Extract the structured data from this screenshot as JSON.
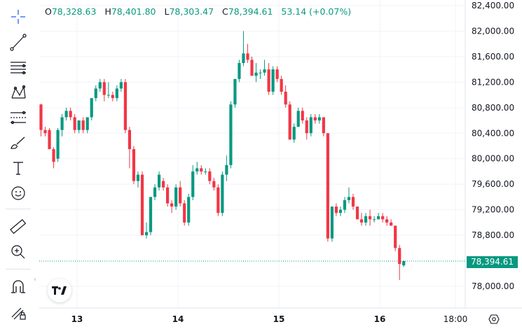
{
  "legend": {
    "open_label": "O",
    "open_value": "78,328.63",
    "high_label": "H",
    "high_value": "78,401.80",
    "low_label": "L",
    "low_value": "78,303.47",
    "close_label": "C",
    "close_value": "78,394.61",
    "change": "53.14 (+0.07%)"
  },
  "last_price_label": "78,394.61",
  "toolbar": {
    "icons": [
      "crosshair-icon",
      "trend-line-icon",
      "horizontal-lines-icon",
      "pattern-icon",
      "fib-icon",
      "brush-icon",
      "text-icon",
      "emoji-icon",
      "ruler-icon",
      "zoom-in-icon",
      "magnet-icon",
      "lock-draw-icon"
    ]
  },
  "colors": {
    "up": "#089981",
    "down": "#f23645",
    "grid": "#f0f3fa",
    "text": "#131722"
  },
  "chart_data": {
    "type": "candlestick",
    "y_axis_labels": [
      "82,400.00",
      "82,000.00",
      "81,600.00",
      "81,200.00",
      "80,800.00",
      "80,400.00",
      "80,000.00",
      "79,600.00",
      "79,200.00",
      "78,800.00",
      "78,000.00"
    ],
    "y_axis_values": [
      82400,
      82000,
      81600,
      81200,
      80800,
      80400,
      80000,
      79600,
      79200,
      78800,
      78000
    ],
    "x_axis_labels": [
      "13",
      "14",
      "15",
      "16",
      "18:00"
    ],
    "ylim": [
      77900,
      82500
    ],
    "last_price": 78394.61,
    "candles": [
      [
        80850,
        80860,
        80350,
        80450
      ],
      [
        80450,
        80500,
        80350,
        80400
      ],
      [
        80450,
        80480,
        80150,
        80150
      ],
      [
        80150,
        80180,
        79850,
        79950
      ],
      [
        80000,
        80480,
        79950,
        80450
      ],
      [
        80450,
        80700,
        80350,
        80650
      ],
      [
        80650,
        80800,
        80600,
        80750
      ],
      [
        80750,
        80800,
        80600,
        80650
      ],
      [
        80650,
        80700,
        80400,
        80450
      ],
      [
        80450,
        80600,
        80400,
        80600
      ],
      [
        80600,
        80650,
        80400,
        80450
      ],
      [
        80450,
        80650,
        80400,
        80650
      ],
      [
        80650,
        80950,
        80600,
        80950
      ],
      [
        80950,
        81150,
        80900,
        81100
      ],
      [
        81100,
        81250,
        81050,
        81200
      ],
      [
        81200,
        81250,
        80900,
        81000
      ],
      [
        81000,
        81200,
        80950,
        81000
      ],
      [
        81000,
        81050,
        80900,
        80950
      ],
      [
        80950,
        81150,
        80900,
        81100
      ],
      [
        81100,
        81250,
        81050,
        81200
      ],
      [
        81200,
        81250,
        80400,
        80450
      ],
      [
        80450,
        80500,
        79850,
        80150
      ],
      [
        80150,
        80200,
        79600,
        79650
      ],
      [
        79650,
        79800,
        79550,
        79750
      ],
      [
        79750,
        79800,
        78800,
        78800
      ],
      [
        78800,
        79000,
        78750,
        78850
      ],
      [
        78850,
        79400,
        78800,
        79400
      ],
      [
        79400,
        79600,
        79350,
        79550
      ],
      [
        79550,
        79800,
        79500,
        79750
      ],
      [
        79650,
        79700,
        79500,
        79550
      ],
      [
        79550,
        79600,
        79250,
        79300
      ],
      [
        79300,
        79350,
        79150,
        79250
      ],
      [
        79250,
        79600,
        79200,
        79550
      ],
      [
        79550,
        79650,
        79250,
        79300
      ],
      [
        79300,
        79350,
        78950,
        79000
      ],
      [
        79000,
        79450,
        78950,
        79400
      ],
      [
        79400,
        79900,
        79350,
        79800
      ],
      [
        79800,
        79950,
        79750,
        79850
      ],
      [
        79850,
        79900,
        79750,
        79800
      ],
      [
        79800,
        79850,
        79750,
        79800
      ],
      [
        79800,
        79850,
        79600,
        79650
      ],
      [
        79650,
        79700,
        79500,
        79550
      ],
      [
        79550,
        79600,
        79100,
        79150
      ],
      [
        79150,
        79800,
        79100,
        79750
      ],
      [
        79750,
        80050,
        79650,
        79900
      ],
      [
        79900,
        80900,
        79850,
        80850
      ],
      [
        80850,
        81250,
        80800,
        81250
      ],
      [
        81250,
        81550,
        81200,
        81500
      ],
      [
        81500,
        82000,
        81450,
        81650
      ],
      [
        81650,
        81800,
        81500,
        81550
      ],
      [
        81550,
        81600,
        81300,
        81300
      ],
      [
        81300,
        81500,
        81200,
        81350
      ],
      [
        81350,
        81400,
        81250,
        81350
      ],
      [
        81350,
        81550,
        81300,
        81400
      ],
      [
        81400,
        81500,
        81000,
        81050
      ],
      [
        81050,
        81450,
        81000,
        81400
      ],
      [
        81400,
        81450,
        81200,
        81250
      ],
      [
        81250,
        81300,
        81000,
        81050
      ],
      [
        81050,
        81150,
        80800,
        80850
      ],
      [
        80850,
        80900,
        80300,
        80300
      ],
      [
        80300,
        80550,
        80250,
        80500
      ],
      [
        80500,
        80800,
        80500,
        80750
      ],
      [
        80750,
        80800,
        80550,
        80600
      ],
      [
        80600,
        80650,
        80300,
        80400
      ],
      [
        80400,
        80700,
        80350,
        80650
      ],
      [
        80650,
        80700,
        80550,
        80600
      ],
      [
        80600,
        80700,
        80550,
        80650
      ],
      [
        80650,
        80650,
        80350,
        80400
      ],
      [
        80400,
        80400,
        78700,
        78750
      ],
      [
        78750,
        79250,
        78700,
        79250
      ],
      [
        79250,
        79300,
        79100,
        79150
      ],
      [
        79150,
        79250,
        79100,
        79200
      ],
      [
        79200,
        79400,
        79150,
        79350
      ],
      [
        79350,
        79550,
        79300,
        79400
      ],
      [
        79400,
        79450,
        79200,
        79250
      ],
      [
        79250,
        79250,
        79050,
        79050
      ],
      [
        79050,
        79150,
        78950,
        79000
      ],
      [
        79000,
        79150,
        78950,
        79100
      ],
      [
        79100,
        79200,
        78950,
        79050
      ],
      [
        79050,
        79100,
        79000,
        79050
      ],
      [
        79050,
        79150,
        79050,
        79100
      ],
      [
        79100,
        79150,
        79000,
        79050
      ],
      [
        79050,
        79100,
        78950,
        79000
      ],
      [
        79000,
        79050,
        78950,
        78950
      ],
      [
        78950,
        78950,
        78550,
        78600
      ],
      [
        78600,
        78650,
        78100,
        78350
      ],
      [
        78328.63,
        78401.8,
        78303.47,
        78394.61
      ]
    ]
  }
}
